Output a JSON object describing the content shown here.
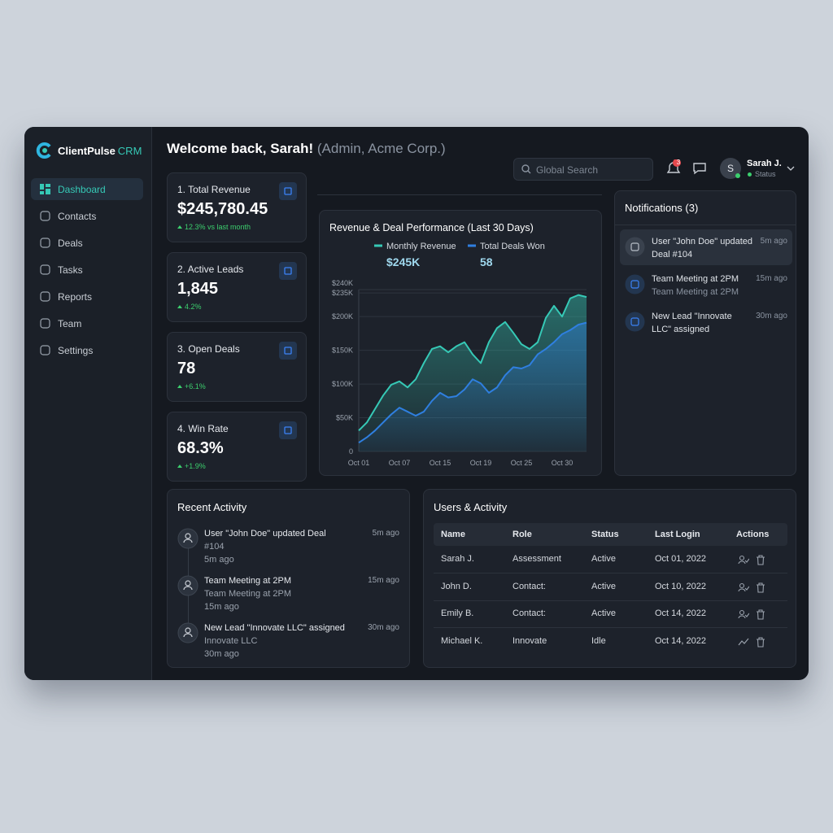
{
  "app": {
    "logo": "ClientPulse",
    "logo_suffix": "CRM"
  },
  "nav": [
    "Dashboard",
    "Contacts",
    "Deals",
    "Tasks",
    "Reports",
    "Team",
    "Settings"
  ],
  "header": {
    "welcome": "Welcome back, Sarah!",
    "role": "(Admin, Acme Corp.)",
    "search_placeholder": "Global Search",
    "notification_count": "3",
    "user_initial": "S",
    "user_name": "Sarah J.",
    "user_status": "Status"
  },
  "kpis": [
    {
      "label": "1. Total Revenue",
      "value": "$245,780.45",
      "change": "12.3% vs last month"
    },
    {
      "label": "2. Active Leads",
      "value": "1,845",
      "change": "4.2%"
    },
    {
      "label": "3. Open Deals",
      "value": "78",
      "change": "+6.1%"
    },
    {
      "label": "4. Win Rate",
      "value": "68.3%",
      "change": "+1.9%"
    }
  ],
  "chart_data": {
    "type": "area",
    "title": "Revenue & Deal Performance (Last 30 Days)",
    "categories": [
      "Oct 01",
      null,
      null,
      null,
      null,
      "Oct 07",
      null,
      null,
      null,
      null,
      "Oct 15",
      null,
      null,
      null,
      null,
      "Oct 19",
      null,
      null,
      null,
      null,
      "Oct 25",
      null,
      null,
      null,
      null,
      "Oct 30",
      null,
      null,
      null
    ],
    "series": [
      {
        "name": "Monthly Revenue",
        "summary": "$245K",
        "color": "#36c9b6",
        "values": [
          31000,
          43000,
          63000,
          83000,
          99000,
          104000,
          95000,
          107000,
          131000,
          152000,
          156000,
          147000,
          156000,
          162000,
          144000,
          131000,
          162000,
          183000,
          192000,
          176000,
          159000,
          152000,
          162000,
          198000,
          216000,
          200000,
          227000,
          232000,
          229000
        ]
      },
      {
        "name": "Total Deals Won",
        "summary": "58",
        "color": "#2f7fe0",
        "values": [
          13000,
          21000,
          31000,
          43000,
          55000,
          65000,
          59000,
          53000,
          59000,
          75000,
          87000,
          80000,
          82000,
          92000,
          107000,
          101000,
          87000,
          95000,
          113000,
          125000,
          123000,
          128000,
          144000,
          152000,
          162000,
          174000,
          180000,
          188000,
          191000
        ]
      }
    ],
    "ylim": [
      0,
      240000
    ],
    "yticks": [
      0,
      {
        "value": 50000,
        "label": "$50K"
      },
      {
        "value": 100000,
        "label": "$100K"
      },
      {
        "value": 150000,
        "label": "$150K"
      },
      {
        "value": 200000,
        "label": "$200K"
      },
      {
        "value": 235000,
        "label": "$235K"
      },
      {
        "value": 240000,
        "label": "$240K"
      }
    ],
    "grid": true
  },
  "notifications": {
    "title": "Notifications (3)",
    "items": [
      {
        "lines": [
          "User \"John Doe\" updated",
          "Deal #104"
        ],
        "time": "5m ago"
      },
      {
        "lines": [
          "Team Meeting at 2PM",
          "Team Meeting at 2PM"
        ],
        "time": "15m ago"
      },
      {
        "lines": [
          "New Lead \"Innovate",
          "LLC\" assigned"
        ],
        "time": "30m ago"
      }
    ]
  },
  "activity": {
    "title": "Recent Activity",
    "items": [
      {
        "lines": [
          "User \"John Doe\" updated Deal",
          "#104",
          "5m ago"
        ],
        "time": "5m ago"
      },
      {
        "lines": [
          "Team Meeting at 2PM",
          "Team Meeting at 2PM",
          "15m ago"
        ],
        "time": "15m ago"
      },
      {
        "lines": [
          "New Lead \"Innovate LLC\" assigned",
          "Innovate LLC",
          "30m ago"
        ],
        "time": "30m ago"
      }
    ]
  },
  "users": {
    "title": "Users & Activity",
    "columns": [
      "Name",
      "Role",
      "Status",
      "Last Login",
      "Actions"
    ],
    "rows": [
      [
        "Sarah J.",
        "Assessment",
        "Active",
        "Oct 01, 2022"
      ],
      [
        "John D.",
        "Contact:",
        "Active",
        "Oct 10, 2022"
      ],
      [
        "Emily B.",
        "Contact:",
        "Active",
        "Oct 14, 2022"
      ],
      [
        "Michael K.",
        "Innovate",
        "Idle",
        "Oct 14, 2022"
      ]
    ]
  }
}
